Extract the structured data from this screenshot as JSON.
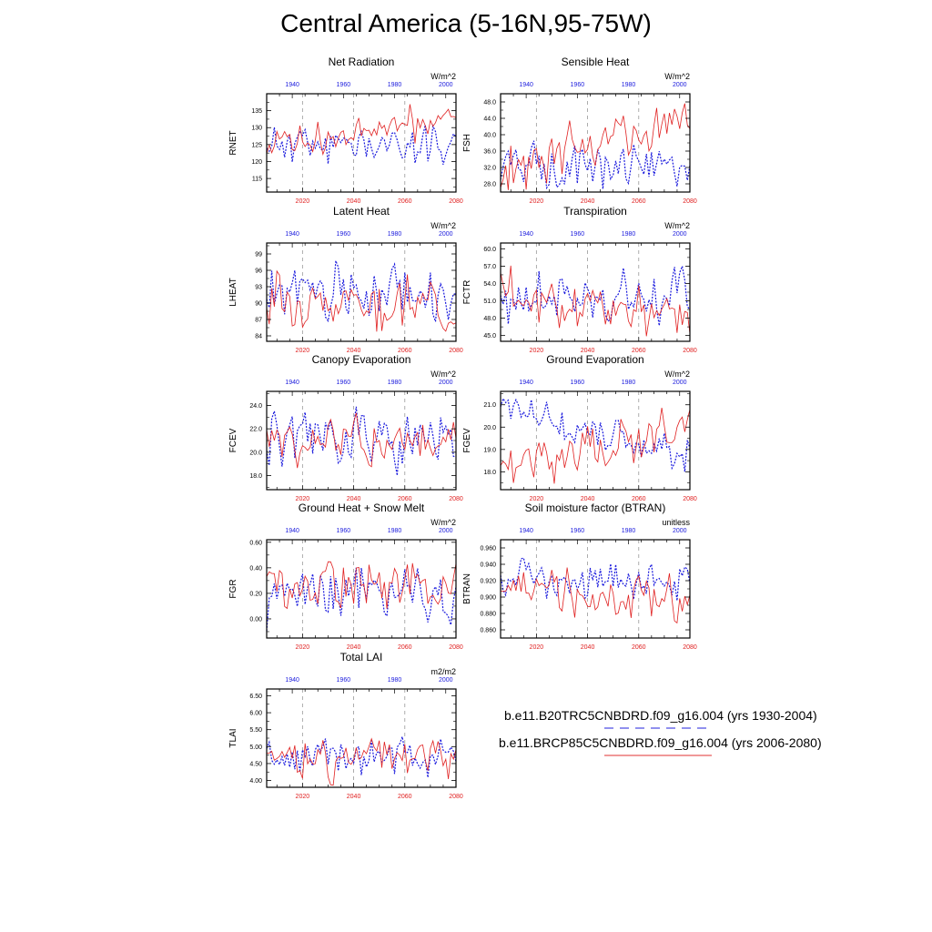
{
  "title": "Central America (5-16N,95-75W)",
  "legend": {
    "entries": [
      {
        "label": "b.e11.B20TRC5CNBDRD.f09_g16.004 (yrs 1930-2004)",
        "color": "#2222dd",
        "dash": "dashed"
      },
      {
        "label": "b.e11.BRCP85C5CNBDRD.f09_g16.004 (yrs 2006-2080)",
        "color": "#e03030",
        "dash": "solid"
      }
    ]
  },
  "colors": {
    "hist": "#1a1add",
    "future": "#e02020",
    "grid": "#999999"
  },
  "chart_data": [
    {
      "type": "line",
      "title": "Net Radiation",
      "ylabel": "RNET",
      "units": "W/m^2",
      "ylim": [
        111,
        140
      ],
      "yticks": [
        "115",
        "120",
        "125",
        "130",
        "135"
      ],
      "ytick_values": [
        115,
        120,
        125,
        130,
        135
      ],
      "bottom_x": {
        "range": [
          2006,
          2080
        ],
        "ticks": [
          "2020",
          "2040",
          "2060",
          "2080"
        ]
      },
      "top_x": {
        "range": [
          1930,
          2004
        ],
        "ticks": [
          "1940",
          "1960",
          "1980",
          "2000"
        ]
      },
      "series": [
        {
          "name": "hist",
          "seed": 11,
          "mean": 125,
          "amp": 3.5,
          "trend": 0
        },
        {
          "name": "future",
          "seed": 12,
          "mean": 124,
          "amp": 3,
          "trend": 10
        }
      ]
    },
    {
      "type": "line",
      "title": "Sensible Heat",
      "ylabel": "FSH",
      "units": "W/m^2",
      "ylim": [
        26,
        50
      ],
      "yticks": [
        "28.0",
        "32.0",
        "36.0",
        "40.0",
        "44.0",
        "48.0"
      ],
      "ytick_values": [
        28,
        32,
        36,
        40,
        44,
        48
      ],
      "bottom_x": {
        "range": [
          2006,
          2080
        ],
        "ticks": [
          "2020",
          "2040",
          "2060",
          "2080"
        ]
      },
      "top_x": {
        "range": [
          1930,
          2004
        ],
        "ticks": [
          "1940",
          "1960",
          "1980",
          "2000"
        ]
      },
      "series": [
        {
          "name": "hist",
          "seed": 21,
          "mean": 32.5,
          "amp": 3,
          "trend": 0
        },
        {
          "name": "future",
          "seed": 22,
          "mean": 32,
          "amp": 3.5,
          "trend": 12
        }
      ]
    },
    {
      "type": "line",
      "title": "Latent Heat",
      "ylabel": "LHEAT",
      "units": "W/m^2",
      "ylim": [
        83,
        101
      ],
      "yticks": [
        "84",
        "87",
        "90",
        "93",
        "96",
        "99"
      ],
      "ytick_values": [
        84,
        87,
        90,
        93,
        96,
        99
      ],
      "bottom_x": {
        "range": [
          2006,
          2080
        ],
        "ticks": [
          "2020",
          "2040",
          "2060",
          "2080"
        ]
      },
      "top_x": {
        "range": [
          1930,
          2004
        ],
        "ticks": [
          "1940",
          "1960",
          "1980",
          "2000"
        ]
      },
      "series": [
        {
          "name": "hist",
          "seed": 31,
          "mean": 92,
          "amp": 3,
          "trend": 0
        },
        {
          "name": "future",
          "seed": 32,
          "mean": 91,
          "amp": 2.8,
          "trend": -1.5
        }
      ]
    },
    {
      "type": "line",
      "title": "Transpiration",
      "ylabel": "FCTR",
      "units": "W/m^2",
      "ylim": [
        44,
        61
      ],
      "yticks": [
        "45.0",
        "48.0",
        "51.0",
        "54.0",
        "57.0",
        "60.0"
      ],
      "ytick_values": [
        45,
        48,
        51,
        54,
        57,
        60
      ],
      "bottom_x": {
        "range": [
          2006,
          2080
        ],
        "ticks": [
          "2020",
          "2040",
          "2060",
          "2080"
        ]
      },
      "top_x": {
        "range": [
          1930,
          2004
        ],
        "ticks": [
          "1940",
          "1960",
          "1980",
          "2000"
        ]
      },
      "series": [
        {
          "name": "hist",
          "seed": 41,
          "mean": 51,
          "amp": 3,
          "trend": 0
        },
        {
          "name": "future",
          "seed": 42,
          "mean": 51.5,
          "amp": 2.6,
          "trend": -3
        }
      ]
    },
    {
      "type": "line",
      "title": "Canopy Evaporation",
      "ylabel": "FCEV",
      "units": "W/m^2",
      "ylim": [
        16.8,
        25.2
      ],
      "yticks": [
        "18.0",
        "20.0",
        "22.0",
        "24.0"
      ],
      "ytick_values": [
        18,
        20,
        22,
        24
      ],
      "bottom_x": {
        "range": [
          2006,
          2080
        ],
        "ticks": [
          "2020",
          "2040",
          "2060",
          "2080"
        ]
      },
      "top_x": {
        "range": [
          1930,
          2004
        ],
        "ticks": [
          "1940",
          "1960",
          "1980",
          "2000"
        ]
      },
      "series": [
        {
          "name": "hist",
          "seed": 51,
          "mean": 21,
          "amp": 1.6,
          "trend": 0
        },
        {
          "name": "future",
          "seed": 52,
          "mean": 20.8,
          "amp": 1.4,
          "trend": 0
        }
      ]
    },
    {
      "type": "line",
      "title": "Ground Evaporation",
      "ylabel": "FGEV",
      "units": "W/m^2",
      "ylim": [
        17.2,
        21.6
      ],
      "yticks": [
        "18.0",
        "19.0",
        "20.0",
        "21.0"
      ],
      "ytick_values": [
        18,
        19,
        20,
        21
      ],
      "bottom_x": {
        "range": [
          2006,
          2080
        ],
        "ticks": [
          "2020",
          "2040",
          "2060",
          "2080"
        ]
      },
      "top_x": {
        "range": [
          1930,
          2004
        ],
        "ticks": [
          "1940",
          "1960",
          "1980",
          "2000"
        ]
      },
      "series": [
        {
          "name": "hist",
          "seed": 61,
          "mean": 20.8,
          "amp": 0.5,
          "trend": -2.2
        },
        {
          "name": "future",
          "seed": 62,
          "mean": 18.3,
          "amp": 0.6,
          "trend": 1.6
        }
      ]
    },
    {
      "type": "line",
      "title": "Ground Heat + Snow Melt",
      "ylabel": "FGR",
      "units": "W/m^2",
      "ylim": [
        -0.15,
        0.62
      ],
      "yticks": [
        "0.00",
        "0.20",
        "0.40",
        "0.60"
      ],
      "ytick_values": [
        0,
        0.2,
        0.4,
        0.6
      ],
      "bottom_x": {
        "range": [
          2006,
          2080
        ],
        "ticks": [
          "2020",
          "2040",
          "2060",
          "2080"
        ]
      },
      "top_x": {
        "range": [
          1930,
          2004
        ],
        "ticks": [
          "1940",
          "1960",
          "1980",
          "2000"
        ]
      },
      "series": [
        {
          "name": "hist",
          "seed": 71,
          "mean": 0.22,
          "amp": 0.14,
          "trend": 0
        },
        {
          "name": "future",
          "seed": 72,
          "mean": 0.24,
          "amp": 0.13,
          "trend": 0.05
        }
      ]
    },
    {
      "type": "line",
      "title": "Soil moisture factor (BTRAN)",
      "ylabel": "BTRAN",
      "units": "unitless",
      "ylim": [
        0.85,
        0.97
      ],
      "yticks": [
        "0.860",
        "0.880",
        "0.900",
        "0.920",
        "0.940",
        "0.960"
      ],
      "ytick_values": [
        0.86,
        0.88,
        0.9,
        0.92,
        0.94,
        0.96
      ],
      "bottom_x": {
        "range": [
          2006,
          2080
        ],
        "ticks": [
          "2020",
          "2040",
          "2060",
          "2080"
        ]
      },
      "top_x": {
        "range": [
          1930,
          2004
        ],
        "ticks": [
          "1940",
          "1960",
          "1980",
          "2000"
        ]
      },
      "series": [
        {
          "name": "hist",
          "seed": 81,
          "mean": 0.925,
          "amp": 0.017,
          "trend": -0.01
        },
        {
          "name": "future",
          "seed": 82,
          "mean": 0.91,
          "amp": 0.018,
          "trend": -0.02
        }
      ]
    },
    {
      "type": "line",
      "title": "Total LAI",
      "ylabel": "TLAI",
      "units": "m2/m2",
      "ylim": [
        3.8,
        6.7
      ],
      "yticks": [
        "4.00",
        "4.50",
        "5.00",
        "5.50",
        "6.00",
        "6.50"
      ],
      "ytick_values": [
        4,
        4.5,
        5,
        5.5,
        6,
        6.5
      ],
      "bottom_x": {
        "range": [
          2006,
          2080
        ],
        "ticks": [
          "2020",
          "2040",
          "2060",
          "2080"
        ]
      },
      "top_x": {
        "range": [
          1930,
          2004
        ],
        "ticks": [
          "1940",
          "1960",
          "1980",
          "2000"
        ]
      },
      "series": [
        {
          "name": "hist",
          "seed": 91,
          "mean": 4.65,
          "amp": 0.35,
          "trend": 0
        },
        {
          "name": "future",
          "seed": 92,
          "mean": 4.6,
          "amp": 0.35,
          "trend": 0.2
        }
      ]
    }
  ]
}
